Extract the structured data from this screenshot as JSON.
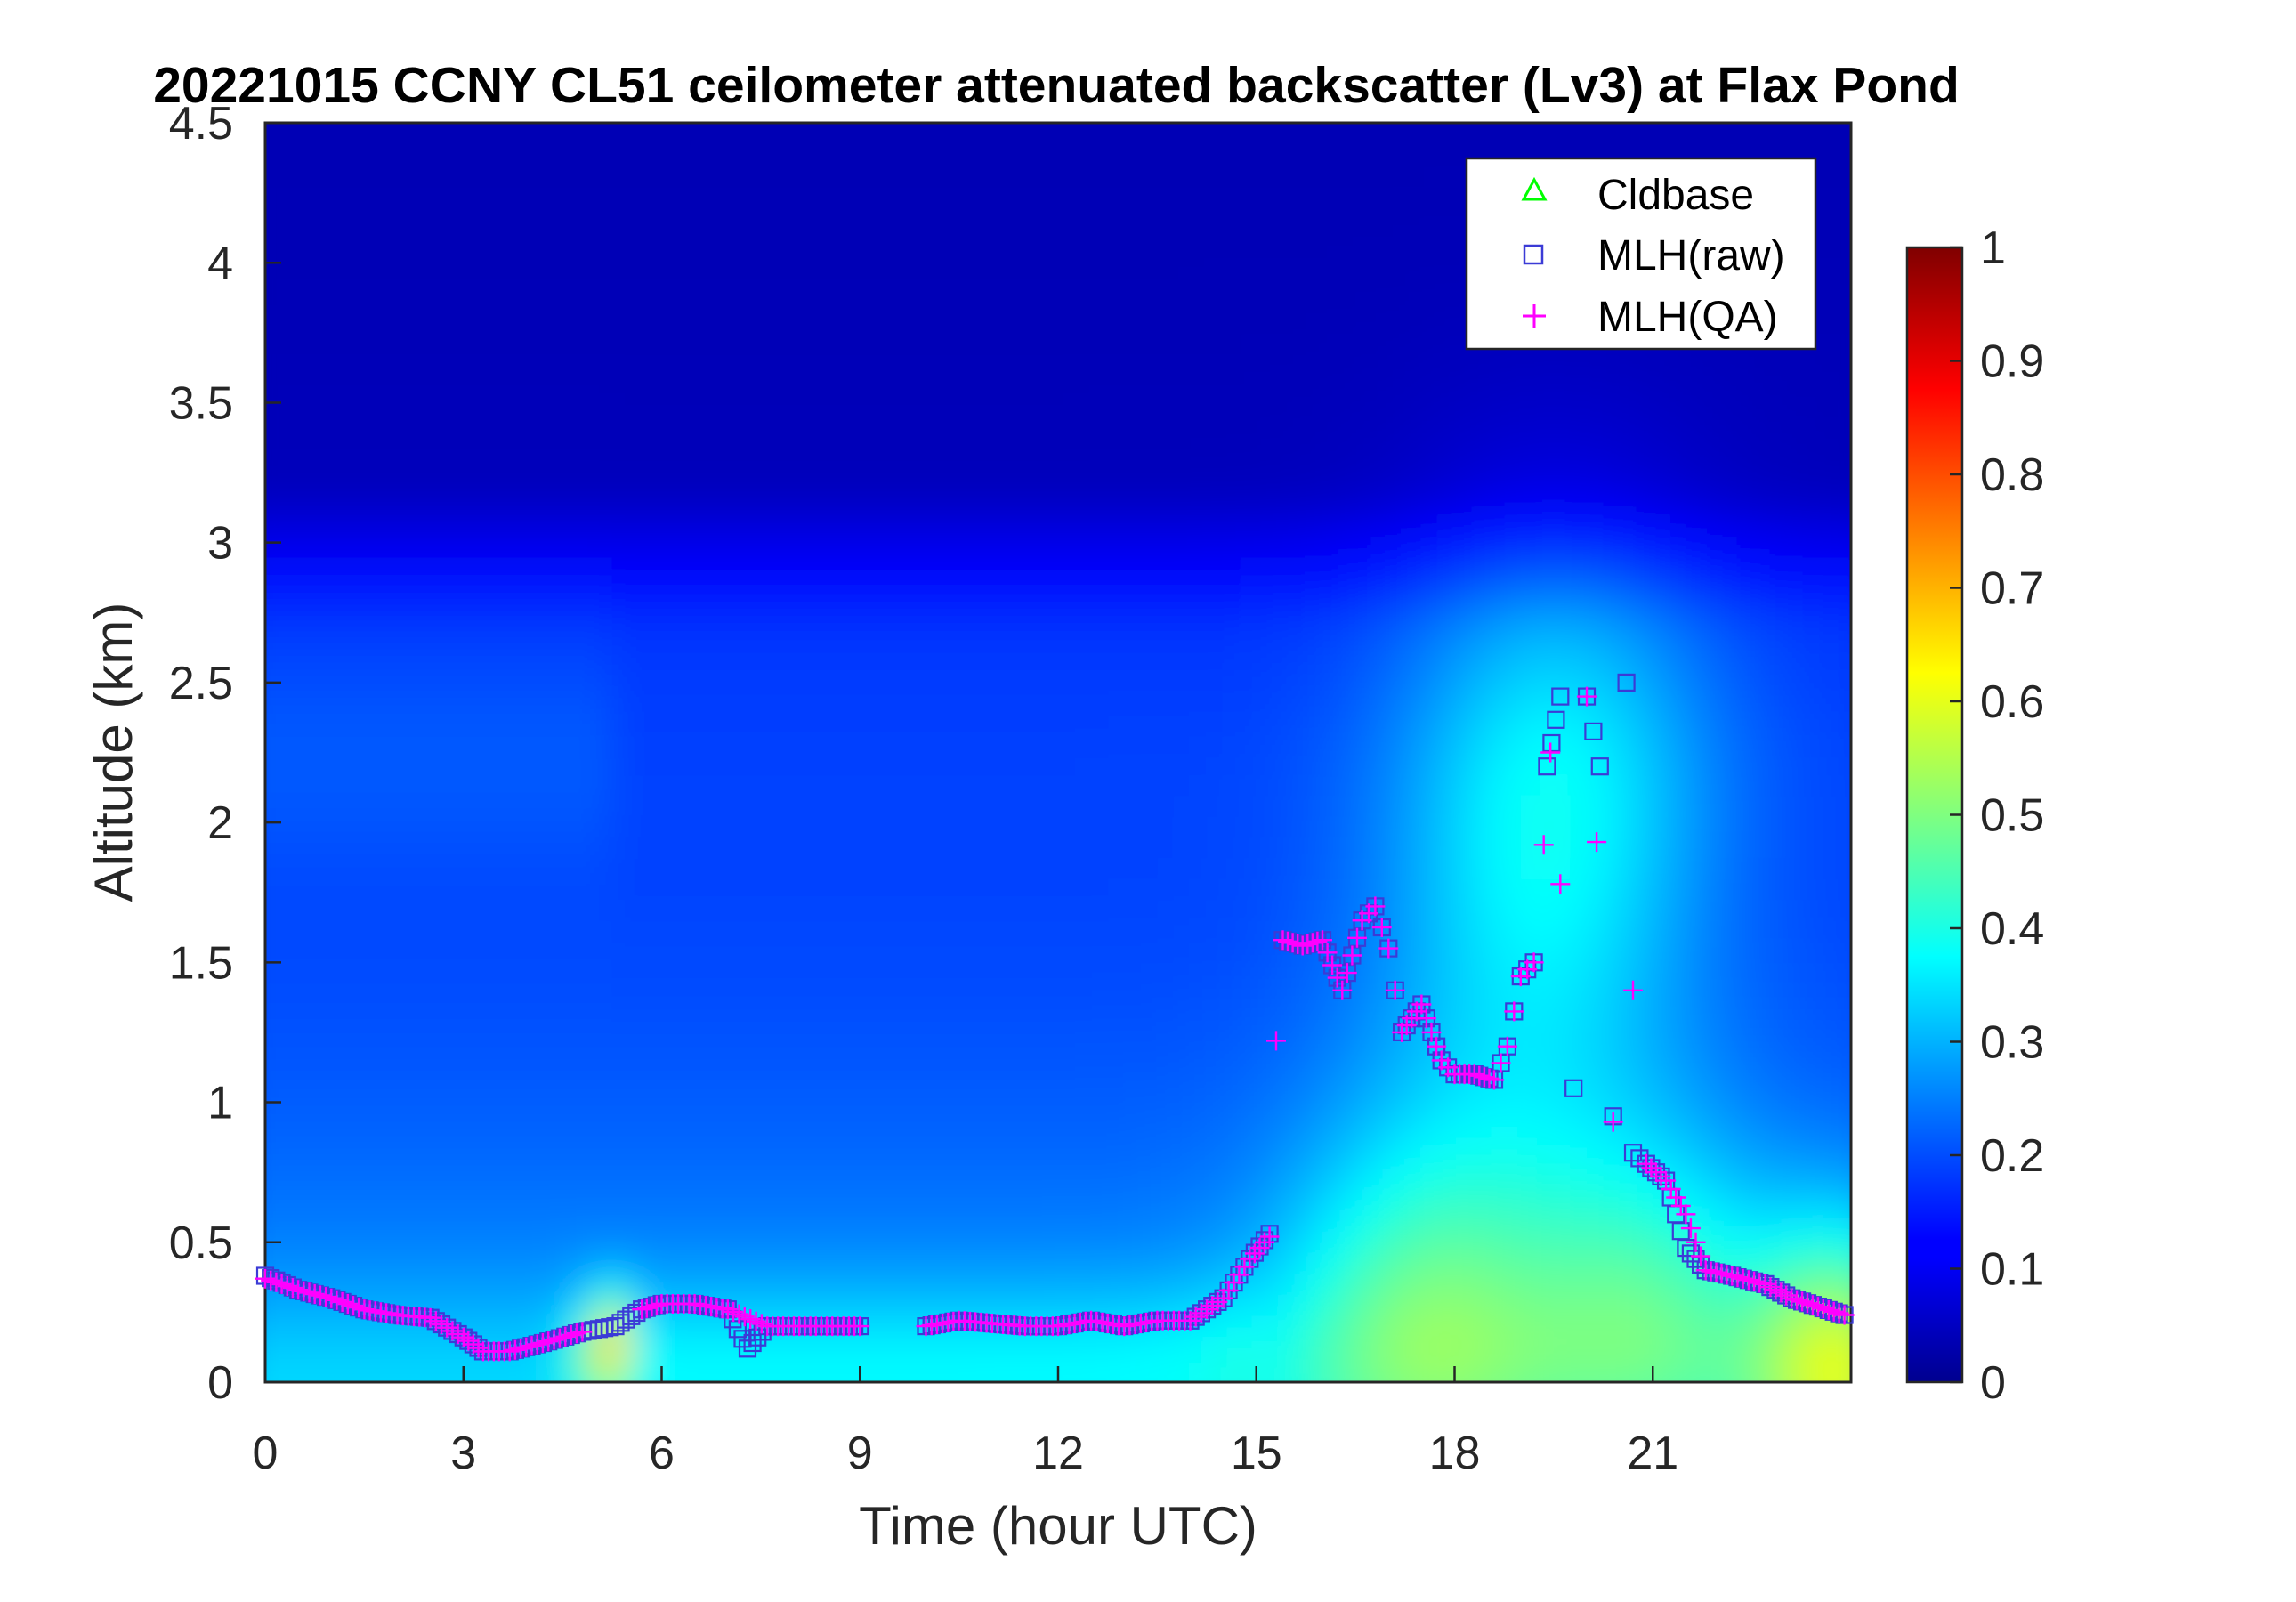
{
  "chart_data": {
    "type": "heatmap",
    "title": "20221015 CCNY CL51 ceilometer attenuated backscatter (Lv3) at Flax Pond",
    "xlabel": "Time (hour UTC)",
    "ylabel": "Altitude (km)",
    "xlim": [
      0,
      24
    ],
    "ylim": [
      0,
      4.5
    ],
    "xticks": [
      0,
      3,
      6,
      9,
      12,
      15,
      18,
      21
    ],
    "xtick_labels": [
      "0",
      "3",
      "6",
      "9",
      "12",
      "15",
      "18",
      "21"
    ],
    "yticks": [
      0,
      0.5,
      1,
      1.5,
      2,
      2.5,
      3,
      3.5,
      4,
      4.5
    ],
    "ytick_labels": [
      "0",
      "0.5",
      "1",
      "1.5",
      "2",
      "2.5",
      "3",
      "3.5",
      "4",
      "4.5"
    ],
    "colorbar": {
      "colormap": "jet",
      "clim": [
        0,
        1
      ],
      "ticks": [
        0,
        0.1,
        0.2,
        0.3,
        0.4,
        0.5,
        0.6,
        0.7,
        0.8,
        0.9,
        1
      ],
      "tick_labels": [
        "0",
        "0.1",
        "0.2",
        "0.3",
        "0.4",
        "0.5",
        "0.6",
        "0.7",
        "0.8",
        "0.9",
        "1"
      ]
    },
    "legend": {
      "placement": "top-right",
      "entries": [
        {
          "label": "Cldbase",
          "marker": "triangle",
          "color": "#00ff00"
        },
        {
          "label": "MLH(raw)",
          "marker": "square",
          "color": "#3b3bd6"
        },
        {
          "label": "MLH(QA)",
          "marker": "plus",
          "color": "#ff00ff"
        }
      ]
    },
    "series": [
      {
        "name": "MLH(raw)",
        "x": [
          0.0,
          0.5,
          1.0,
          1.5,
          2.0,
          2.5,
          3.0,
          3.3,
          3.7,
          4.2,
          4.8,
          5.3,
          5.7,
          6.0,
          6.5,
          7.0,
          7.3,
          7.6,
          8.0,
          8.5,
          9.0,
          10.0,
          10.5,
          11.0,
          11.5,
          12.0,
          12.5,
          13.0,
          13.5,
          14.0,
          14.5,
          14.9,
          15.2,
          15.4,
          15.7,
          16.0,
          16.3,
          16.6,
          16.8,
          17.0,
          17.2,
          17.5,
          17.8,
          18.0,
          18.3,
          18.6,
          18.8,
          19.0,
          19.2,
          19.4,
          19.6,
          19.8,
          20.0,
          20.2,
          20.4,
          20.6,
          20.7,
          20.9,
          21.2,
          21.5,
          21.8,
          22.2,
          22.7,
          23.1,
          23.5,
          23.9
        ],
        "y": [
          0.38,
          0.33,
          0.3,
          0.26,
          0.24,
          0.23,
          0.16,
          0.11,
          0.11,
          0.14,
          0.18,
          0.2,
          0.26,
          0.28,
          0.28,
          0.26,
          0.12,
          0.2,
          0.2,
          0.2,
          0.2,
          0.2,
          0.22,
          0.21,
          0.2,
          0.2,
          0.22,
          0.2,
          0.22,
          0.22,
          0.3,
          0.44,
          0.53,
          1.58,
          1.56,
          1.58,
          1.4,
          1.65,
          1.7,
          1.55,
          1.25,
          1.35,
          1.15,
          1.1,
          1.1,
          1.08,
          1.2,
          1.45,
          1.5,
          2.2,
          2.45,
          1.05,
          2.45,
          2.2,
          0.95,
          2.5,
          0.82,
          0.78,
          0.72,
          0.48,
          0.4,
          0.38,
          0.35,
          0.3,
          0.27,
          0.24
        ]
      },
      {
        "name": "MLH(QA)",
        "x": [
          0.0,
          0.5,
          1.0,
          1.5,
          2.0,
          2.5,
          3.0,
          3.3,
          3.7,
          4.2,
          4.8,
          5.7,
          6.0,
          6.5,
          7.0,
          7.6,
          8.0,
          8.5,
          9.0,
          10.0,
          10.5,
          11.0,
          11.5,
          12.0,
          12.5,
          13.0,
          13.5,
          14.0,
          14.5,
          14.9,
          15.2,
          15.3,
          15.4,
          15.7,
          16.0,
          16.3,
          16.6,
          16.8,
          17.0,
          17.2,
          17.5,
          17.8,
          18.0,
          18.3,
          18.6,
          18.8,
          19.0,
          19.2,
          19.35,
          19.45,
          19.6,
          20.0,
          20.15,
          20.4,
          20.7,
          20.9,
          21.2,
          21.5,
          21.8,
          22.2,
          22.7,
          23.1,
          23.5,
          23.9
        ],
        "y": [
          0.37,
          0.33,
          0.3,
          0.26,
          0.24,
          0.23,
          0.16,
          0.11,
          0.11,
          0.14,
          0.18,
          0.26,
          0.28,
          0.28,
          0.26,
          0.2,
          0.2,
          0.2,
          0.2,
          0.2,
          0.22,
          0.21,
          0.2,
          0.2,
          0.22,
          0.2,
          0.22,
          0.22,
          0.3,
          0.44,
          0.52,
          1.22,
          1.58,
          1.56,
          1.58,
          1.4,
          1.65,
          1.7,
          1.55,
          1.25,
          1.35,
          1.15,
          1.1,
          1.1,
          1.08,
          1.2,
          1.45,
          1.5,
          1.92,
          2.25,
          1.78,
          2.45,
          1.93,
          0.93,
          1.4,
          0.78,
          0.72,
          0.6,
          0.4,
          0.38,
          0.35,
          0.3,
          0.27,
          0.24
        ]
      },
      {
        "name": "Cldbase",
        "x": [],
        "y": []
      }
    ]
  }
}
